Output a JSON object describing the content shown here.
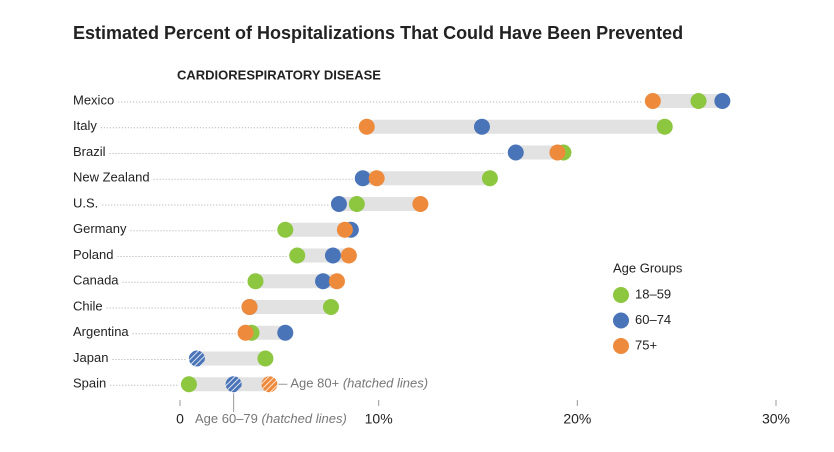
{
  "chart_data": {
    "type": "dot",
    "title": "Estimated Percent of Hospitalizations That Could Have Been Prevented",
    "subtitle": "CARDIORESPIRATORY DISEASE",
    "legend_title": "Age Groups",
    "legend_position": "right",
    "categories": [
      "Mexico",
      "Italy",
      "Brazil",
      "New Zealand",
      "U.S.",
      "Germany",
      "Poland",
      "Canada",
      "Chile",
      "Argentina",
      "Japan",
      "Spain"
    ],
    "series": [
      {
        "name": "18–59",
        "color": "#8dc63f",
        "values": [
          26.1,
          24.4,
          19.3,
          15.6,
          8.9,
          5.3,
          5.9,
          3.8,
          7.6,
          3.6,
          4.3,
          0.45
        ],
        "hatched": [
          false,
          false,
          false,
          false,
          false,
          false,
          false,
          false,
          false,
          false,
          false,
          false
        ]
      },
      {
        "name": "60–74",
        "color": "#4a74b8",
        "values": [
          27.3,
          15.2,
          16.9,
          9.2,
          8.0,
          8.6,
          7.7,
          7.2,
          3.5,
          5.3,
          0.85,
          2.7
        ],
        "hatched": [
          false,
          false,
          false,
          false,
          false,
          false,
          false,
          false,
          false,
          false,
          true,
          true
        ]
      },
      {
        "name": "75+",
        "color": "#ee8a3c",
        "values": [
          23.8,
          9.4,
          19.0,
          9.9,
          12.1,
          8.3,
          8.5,
          7.9,
          3.5,
          3.3,
          null,
          4.5
        ],
        "hatched": [
          false,
          false,
          false,
          false,
          false,
          false,
          false,
          false,
          false,
          false,
          false,
          true
        ]
      }
    ],
    "annotations": [
      {
        "text": "Age 80+",
        "note": "(hatched lines)"
      },
      {
        "text": "Age 60–79",
        "note": "(hatched lines)"
      }
    ],
    "xlim": [
      0,
      30
    ],
    "xticks": [
      {
        "value": 0,
        "label": "0"
      },
      {
        "value": 10,
        "label": "10%"
      },
      {
        "value": 20,
        "label": "20%"
      },
      {
        "value": 30,
        "label": "30%"
      }
    ]
  }
}
